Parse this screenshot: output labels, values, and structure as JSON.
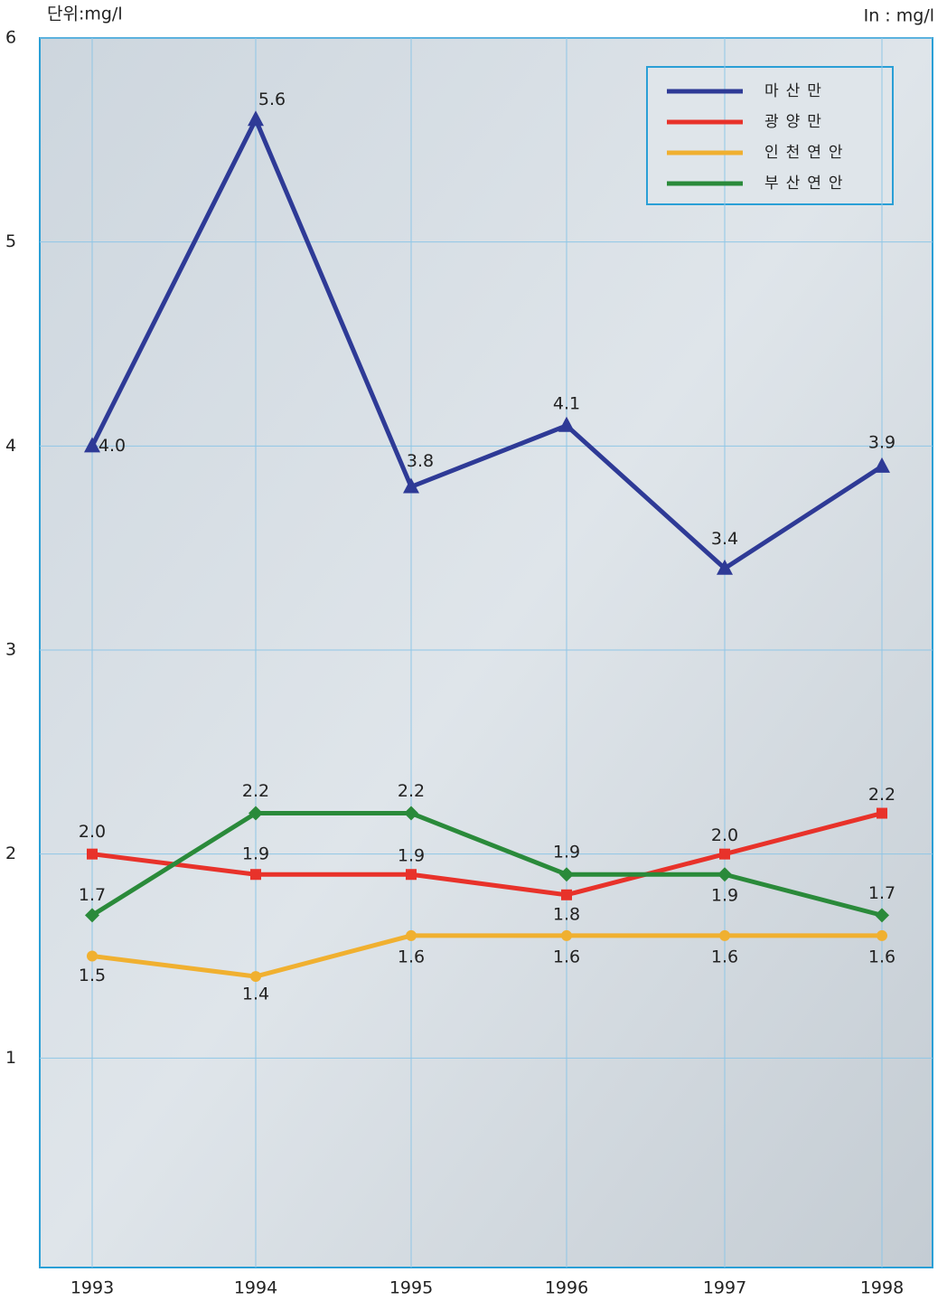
{
  "chart_data": {
    "type": "line",
    "unit_label_left": "단위:mg/l",
    "unit_label_right": "In : mg/l",
    "categories": [
      "1993",
      "1994",
      "1995",
      "1996",
      "1997",
      "1998"
    ],
    "ylim": [
      0,
      6
    ],
    "yticks": [
      1,
      2,
      3,
      4,
      5,
      6
    ],
    "grid": true,
    "legend": "upper right",
    "series": [
      {
        "name": "마산만",
        "color": "#2e3a96",
        "marker": "triangle",
        "values": [
          4.0,
          5.6,
          3.8,
          4.1,
          3.4,
          3.9
        ],
        "value_labels": [
          "4.0",
          "5.6",
          "3.8",
          "4.1",
          "3.4",
          "3.9"
        ]
      },
      {
        "name": "광양만",
        "color": "#e8322a",
        "marker": "square",
        "values": [
          2.0,
          1.9,
          1.9,
          1.8,
          2.0,
          2.2
        ],
        "value_labels": [
          "2.0",
          "1.9",
          "1.9",
          "1.8",
          "2.0",
          "2.2"
        ]
      },
      {
        "name": "인천연안",
        "color": "#f0b030",
        "marker": "circle",
        "values": [
          1.5,
          1.4,
          1.6,
          1.6,
          1.6,
          1.6
        ]
      },
      {
        "name": "부산연안",
        "color": "#2a8a3a",
        "marker": "diamond",
        "values": [
          1.7,
          2.2,
          2.2,
          1.9,
          1.9,
          1.7
        ]
      }
    ]
  }
}
